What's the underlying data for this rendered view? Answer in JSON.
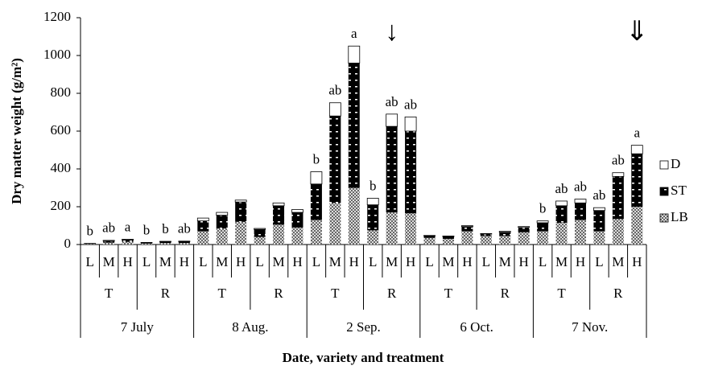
{
  "chart_data": {
    "type": "bar",
    "stacked": true,
    "y_label": "Dry matter weight (g/m²)",
    "x_label": "Date, variety and treatment",
    "categories": [
      "L",
      "M",
      "H",
      "L",
      "M",
      "H",
      "L",
      "M",
      "H",
      "L",
      "M",
      "H",
      "L",
      "M",
      "H",
      "L",
      "M",
      "H",
      "L",
      "M",
      "H",
      "L",
      "M",
      "H",
      "L",
      "M",
      "H",
      "L",
      "M",
      "H"
    ],
    "varieties": [
      "T",
      "R",
      "T",
      "R",
      "T",
      "R",
      "T",
      "R",
      "T",
      "R"
    ],
    "dates": [
      "7 July",
      "8 Aug.",
      "2 Sep.",
      "6 Oct.",
      "7 Nov."
    ],
    "series": [
      {
        "name": "LB",
        "color": "#8c8c8c",
        "values": [
          3,
          10,
          14,
          5,
          8,
          8,
          70,
          85,
          120,
          40,
          105,
          90,
          130,
          220,
          300,
          75,
          170,
          165,
          35,
          30,
          70,
          45,
          45,
          65,
          70,
          115,
          130,
          70,
          135,
          200
        ]
      },
      {
        "name": "ST",
        "color": "#000000",
        "values": [
          2,
          8,
          10,
          4,
          6,
          7,
          55,
          70,
          105,
          40,
          100,
          80,
          190,
          460,
          660,
          135,
          455,
          435,
          10,
          12,
          25,
          10,
          20,
          25,
          45,
          90,
          90,
          110,
          225,
          280
        ]
      },
      {
        "name": "D",
        "color": "#ffffff",
        "values": [
          1,
          4,
          4,
          2,
          3,
          3,
          15,
          15,
          10,
          5,
          15,
          15,
          65,
          70,
          90,
          35,
          65,
          75,
          3,
          3,
          5,
          3,
          5,
          5,
          10,
          25,
          20,
          15,
          20,
          45
        ]
      }
    ],
    "bar_labels": [
      "b",
      "ab",
      "a",
      "b",
      "b",
      "ab",
      null,
      null,
      null,
      null,
      null,
      null,
      "b",
      "ab",
      "a",
      "b",
      "ab",
      "ab",
      null,
      null,
      null,
      null,
      null,
      null,
      "b",
      "ab",
      "ab",
      "ab",
      "ab",
      "a"
    ],
    "arrows": [
      null,
      null,
      null,
      null,
      null,
      null,
      null,
      null,
      null,
      null,
      null,
      null,
      null,
      null,
      null,
      null,
      "↓",
      null,
      null,
      null,
      null,
      null,
      null,
      null,
      null,
      null,
      null,
      null,
      null,
      "⇓"
    ],
    "ylim": [
      0,
      1200
    ],
    "yticks": [
      0,
      200,
      400,
      600,
      800,
      1000,
      1200
    ]
  }
}
